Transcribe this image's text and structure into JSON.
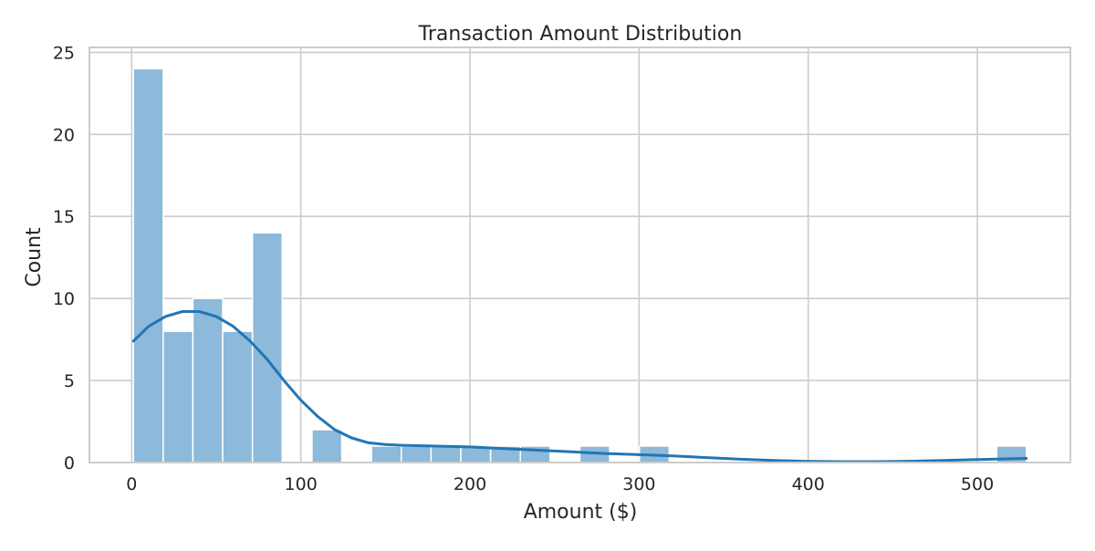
{
  "chart_data": {
    "type": "bar",
    "title": "Transaction Amount Distribution",
    "xlabel": "Amount ($)",
    "ylabel": "Count",
    "xlim": [
      -25,
      555
    ],
    "ylim": [
      0,
      25.3
    ],
    "grid": true,
    "bin_width": 17.6,
    "bins": [
      {
        "start": 1.0,
        "end": 18.6,
        "count": 24
      },
      {
        "start": 18.6,
        "end": 36.2,
        "count": 8
      },
      {
        "start": 36.2,
        "end": 53.8,
        "count": 10
      },
      {
        "start": 53.8,
        "end": 71.4,
        "count": 8
      },
      {
        "start": 71.4,
        "end": 89.0,
        "count": 14
      },
      {
        "start": 89.0,
        "end": 106.6,
        "count": 0
      },
      {
        "start": 106.6,
        "end": 124.2,
        "count": 2
      },
      {
        "start": 124.2,
        "end": 141.8,
        "count": 0
      },
      {
        "start": 141.8,
        "end": 159.4,
        "count": 1
      },
      {
        "start": 159.4,
        "end": 177.0,
        "count": 1
      },
      {
        "start": 177.0,
        "end": 194.6,
        "count": 1
      },
      {
        "start": 194.6,
        "end": 212.2,
        "count": 1
      },
      {
        "start": 212.2,
        "end": 229.8,
        "count": 1
      },
      {
        "start": 229.8,
        "end": 247.4,
        "count": 1
      },
      {
        "start": 247.4,
        "end": 265.0,
        "count": 0
      },
      {
        "start": 265.0,
        "end": 282.6,
        "count": 1
      },
      {
        "start": 282.6,
        "end": 300.2,
        "count": 0
      },
      {
        "start": 300.2,
        "end": 317.8,
        "count": 1
      },
      {
        "start": 317.8,
        "end": 335.4,
        "count": 0
      },
      {
        "start": 335.4,
        "end": 353.0,
        "count": 0
      },
      {
        "start": 353.0,
        "end": 370.6,
        "count": 0
      },
      {
        "start": 370.6,
        "end": 388.2,
        "count": 0
      },
      {
        "start": 388.2,
        "end": 405.8,
        "count": 0
      },
      {
        "start": 405.8,
        "end": 423.4,
        "count": 0
      },
      {
        "start": 423.4,
        "end": 441.0,
        "count": 0
      },
      {
        "start": 441.0,
        "end": 458.6,
        "count": 0
      },
      {
        "start": 458.6,
        "end": 476.2,
        "count": 0
      },
      {
        "start": 476.2,
        "end": 493.8,
        "count": 0
      },
      {
        "start": 493.8,
        "end": 511.4,
        "count": 0
      },
      {
        "start": 511.4,
        "end": 529.0,
        "count": 1
      }
    ],
    "kde": {
      "x": [
        1,
        10,
        20,
        30,
        40,
        50,
        60,
        70,
        80,
        90,
        100,
        110,
        120,
        130,
        140,
        150,
        160,
        180,
        200,
        220,
        240,
        260,
        280,
        300,
        320,
        340,
        360,
        380,
        400,
        420,
        440,
        460,
        480,
        500,
        520,
        529
      ],
      "y": [
        7.4,
        8.3,
        8.9,
        9.2,
        9.2,
        8.9,
        8.3,
        7.4,
        6.3,
        5.0,
        3.8,
        2.8,
        2.0,
        1.5,
        1.2,
        1.1,
        1.05,
        1.0,
        0.95,
        0.85,
        0.75,
        0.65,
        0.55,
        0.48,
        0.4,
        0.3,
        0.2,
        0.12,
        0.07,
        0.05,
        0.05,
        0.08,
        0.13,
        0.18,
        0.23,
        0.25
      ]
    },
    "xticks": [
      0,
      100,
      200,
      300,
      400,
      500
    ],
    "yticks": [
      0,
      5,
      10,
      15,
      20,
      25
    ],
    "colors": {
      "bar_fill": "#8db9da",
      "bar_edge": "#ffffff",
      "kde_line": "#2276b4",
      "grid": "#cccccc",
      "spine": "#cccccc",
      "text": "#262626"
    }
  }
}
